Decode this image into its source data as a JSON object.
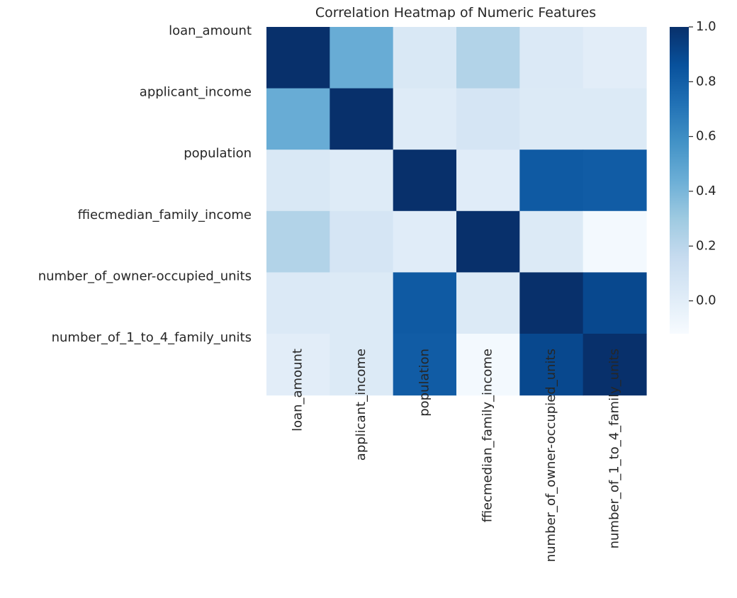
{
  "chart_data": {
    "type": "heatmap",
    "title": "Correlation Heatmap of Numeric Features",
    "row_labels": [
      "loan_amount",
      "applicant_income",
      "population",
      "ffiecmedian_family_income",
      "number_of_owner-occupied_units",
      "number_of_1_to_4_family_units"
    ],
    "col_labels": [
      "loan_amount",
      "applicant_income",
      "population",
      "ffiecmedian_family_income",
      "number_of_owner-occupied_units",
      "number_of_1_to_4_family_units"
    ],
    "values": [
      [
        1.0,
        0.45,
        0.05,
        0.23,
        0.04,
        0.0
      ],
      [
        0.45,
        1.0,
        0.02,
        0.07,
        0.03,
        0.03
      ],
      [
        0.05,
        0.02,
        1.0,
        0.01,
        0.82,
        0.81
      ],
      [
        0.23,
        0.07,
        0.01,
        1.0,
        0.03,
        -0.1
      ],
      [
        0.04,
        0.03,
        0.82,
        0.03,
        1.0,
        0.9
      ],
      [
        0.0,
        0.03,
        0.81,
        -0.1,
        0.9,
        1.0
      ]
    ],
    "colormap": "Blues",
    "colormap_stops": [
      "#f7fbff",
      "#deebf7",
      "#c6dbef",
      "#9ecae1",
      "#6baed6",
      "#4292c6",
      "#2171b5",
      "#08519c",
      "#08306b"
    ],
    "vmin": -0.12,
    "vmax": 1.0,
    "colorbar_ticks": [
      1.0,
      0.8,
      0.6,
      0.4,
      0.2,
      0.0
    ],
    "colorbar_tick_labels": [
      "1.0",
      "0.8",
      "0.6",
      "0.4",
      "0.2",
      "0.0"
    ],
    "grid": false,
    "colorbar_position": "right"
  }
}
